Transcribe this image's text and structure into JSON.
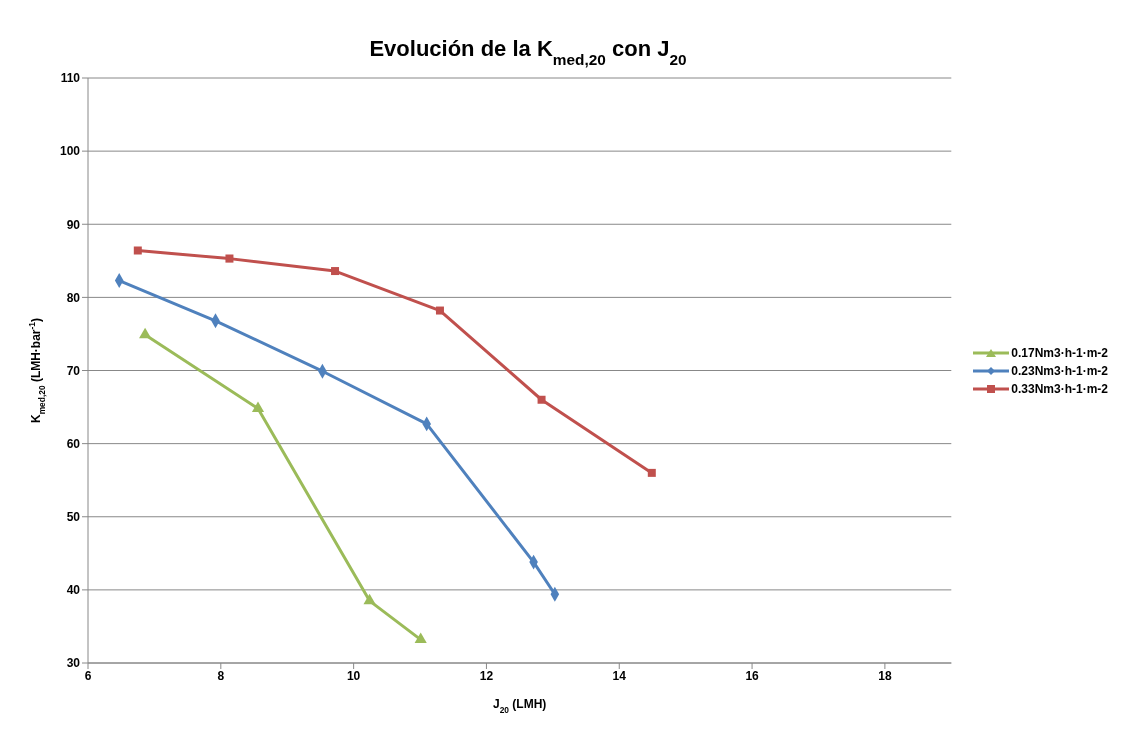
{
  "chart_data": {
    "type": "line",
    "title": "Evolución de la K$_{med,20}$ con J$_{20}$",
    "xlabel": "J$_{20}$ (LMH)",
    "ylabel": "K$_{med,20}$ (LMH·bar$^{-1}$)",
    "xlim": [
      6,
      19
    ],
    "xticks": [
      6,
      8,
      10,
      12,
      14,
      16,
      18
    ],
    "ylim": [
      30,
      110
    ],
    "yticks": [
      30,
      40,
      50,
      60,
      70,
      80,
      90,
      100,
      110
    ],
    "grid": "y",
    "legend": "right",
    "series": [
      {
        "name": "0.17Nm3·h-1·m-2",
        "color": "#9bbb59",
        "marker": "triangle",
        "x": [
          6.86,
          8.56,
          10.24,
          11.01
        ],
        "values": [
          74.9,
          64.8,
          38.5,
          33.2
        ]
      },
      {
        "name": "0.23Nm3·h-1·m-2",
        "color": "#4f81bd",
        "marker": "diamond",
        "x": [
          6.47,
          7.92,
          9.53,
          11.1,
          12.71,
          13.03
        ],
        "values": [
          82.3,
          76.8,
          69.9,
          62.7,
          43.8,
          39.4
        ]
      },
      {
        "name": "0.33Nm3·h-1·m-2",
        "color": "#c0504d",
        "marker": "square",
        "x": [
          6.75,
          8.13,
          9.72,
          11.3,
          12.83,
          14.49
        ],
        "values": [
          86.4,
          85.3,
          83.6,
          78.2,
          66.0,
          56.0
        ]
      }
    ]
  }
}
